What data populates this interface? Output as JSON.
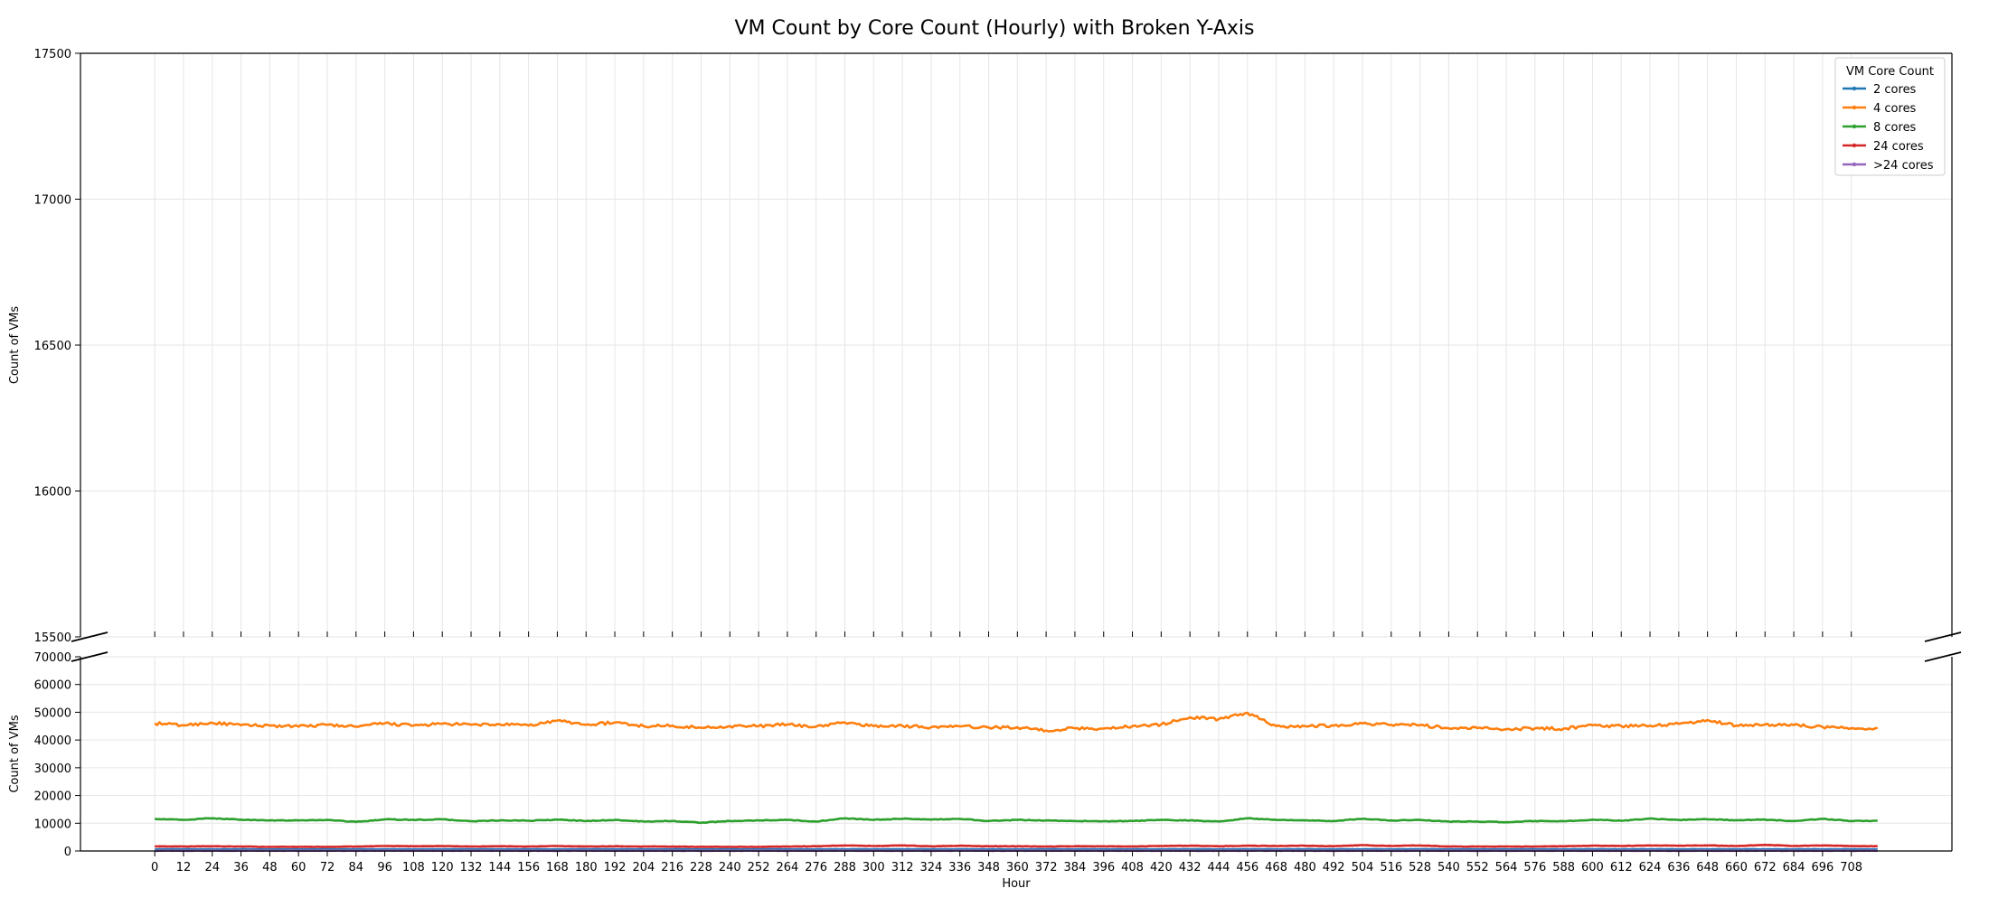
{
  "chart_data": {
    "type": "line",
    "title": "VM Count by Core Count (Hourly) with Broken Y-Axis",
    "xlabel": "Hour",
    "ylabel": "Count of VMs",
    "x_range": [
      0,
      719
    ],
    "x_ticks": [
      0,
      12,
      24,
      36,
      48,
      60,
      72,
      84,
      96,
      108,
      120,
      132,
      144,
      156,
      168,
      180,
      192,
      204,
      216,
      228,
      240,
      252,
      264,
      276,
      288,
      300,
      312,
      324,
      336,
      348,
      360,
      372,
      384,
      396,
      408,
      420,
      432,
      444,
      456,
      468,
      480,
      492,
      504,
      516,
      528,
      540,
      552,
      564,
      576,
      588,
      600,
      612,
      624,
      636,
      648,
      660,
      672,
      684,
      696,
      708
    ],
    "upper_panel": {
      "ylim": [
        15500,
        17500
      ],
      "y_ticks": [
        15500,
        16000,
        16500,
        17000,
        17500
      ]
    },
    "lower_panel": {
      "ylim": [
        0,
        70000
      ],
      "y_ticks": [
        0,
        10000,
        20000,
        30000,
        40000,
        50000,
        60000,
        70000
      ]
    },
    "grid": true,
    "legend": {
      "title": "VM Core Count",
      "placement": "top-right"
    },
    "series_sampling": "values sampled every 12 hours, hour 0 through hour 708 plus hour 719",
    "series": [
      {
        "name": "2 cores",
        "color": "#1f77b4",
        "values": [
          600,
          600,
          600,
          600,
          600,
          600,
          600,
          600,
          600,
          600,
          600,
          600,
          600,
          600,
          600,
          600,
          600,
          600,
          600,
          600,
          600,
          600,
          600,
          600,
          600,
          600,
          600,
          600,
          600,
          600,
          600,
          600,
          600,
          600,
          600,
          600,
          600,
          600,
          600,
          600,
          600,
          600,
          600,
          600,
          600,
          600,
          600,
          600,
          600,
          600,
          600,
          600,
          600,
          600,
          600,
          600,
          600,
          600,
          600,
          600,
          600
        ]
      },
      {
        "name": "4 cores",
        "color": "#ff7f0e",
        "values": [
          46000,
          45300,
          46200,
          45300,
          45200,
          44800,
          45500,
          44800,
          46000,
          45200,
          45800,
          45500,
          45600,
          45200,
          47000,
          45500,
          46300,
          45000,
          45200,
          44400,
          45000,
          45000,
          45600,
          44800,
          46300,
          45000,
          45100,
          44600,
          44900,
          44500,
          44600,
          43400,
          44200,
          44100,
          45000,
          45600,
          48200,
          47500,
          49800,
          45000,
          45000,
          45200,
          46000,
          45500,
          45400,
          44200,
          44300,
          43900,
          44200,
          44100,
          45300,
          45000,
          45200,
          45800,
          47200,
          45200,
          45600,
          45400,
          44700,
          44200,
          44400
        ]
      },
      {
        "name": "8 cores",
        "color": "#2ca02c",
        "values": [
          11600,
          11200,
          11800,
          11300,
          11000,
          11000,
          11200,
          10500,
          11400,
          11200,
          11400,
          10700,
          11000,
          10900,
          11300,
          10800,
          11200,
          10600,
          10800,
          10200,
          10800,
          11000,
          11200,
          10600,
          11800,
          11200,
          11600,
          11300,
          11600,
          10800,
          11200,
          11000,
          10800,
          10700,
          10800,
          11200,
          11000,
          10600,
          11800,
          11200,
          11000,
          10800,
          11600,
          11000,
          11200,
          10600,
          10600,
          10400,
          10800,
          10700,
          11300,
          10900,
          11700,
          11200,
          11400,
          11100,
          11300,
          10800,
          11600,
          10800,
          10900
        ]
      },
      {
        "name": "24 cores",
        "color": "#d62728",
        "values": [
          1700,
          1600,
          1700,
          1600,
          1500,
          1500,
          1500,
          1600,
          1800,
          1700,
          1800,
          1600,
          1700,
          1600,
          1800,
          1600,
          1700,
          1600,
          1600,
          1500,
          1500,
          1500,
          1600,
          1700,
          2000,
          1800,
          2000,
          1700,
          1900,
          1700,
          1700,
          1600,
          1700,
          1700,
          1600,
          1800,
          1900,
          1700,
          1900,
          1800,
          1900,
          1700,
          2100,
          1800,
          2000,
          1600,
          1600,
          1600,
          1600,
          1700,
          1900,
          1800,
          2000,
          1900,
          2000,
          1800,
          2200,
          1800,
          2000,
          1800,
          1700
        ]
      },
      {
        "name": ">24 cores",
        "color": "#9467bd",
        "values": [
          100,
          100,
          100,
          100,
          100,
          100,
          100,
          100,
          100,
          100,
          100,
          100,
          100,
          100,
          100,
          100,
          100,
          100,
          100,
          100,
          100,
          100,
          100,
          100,
          100,
          100,
          100,
          100,
          100,
          100,
          100,
          100,
          100,
          100,
          100,
          100,
          100,
          100,
          100,
          100,
          100,
          100,
          100,
          100,
          100,
          100,
          100,
          100,
          100,
          100,
          100,
          100,
          100,
          100,
          100,
          100,
          100,
          100,
          100,
          100,
          100
        ]
      }
    ]
  }
}
